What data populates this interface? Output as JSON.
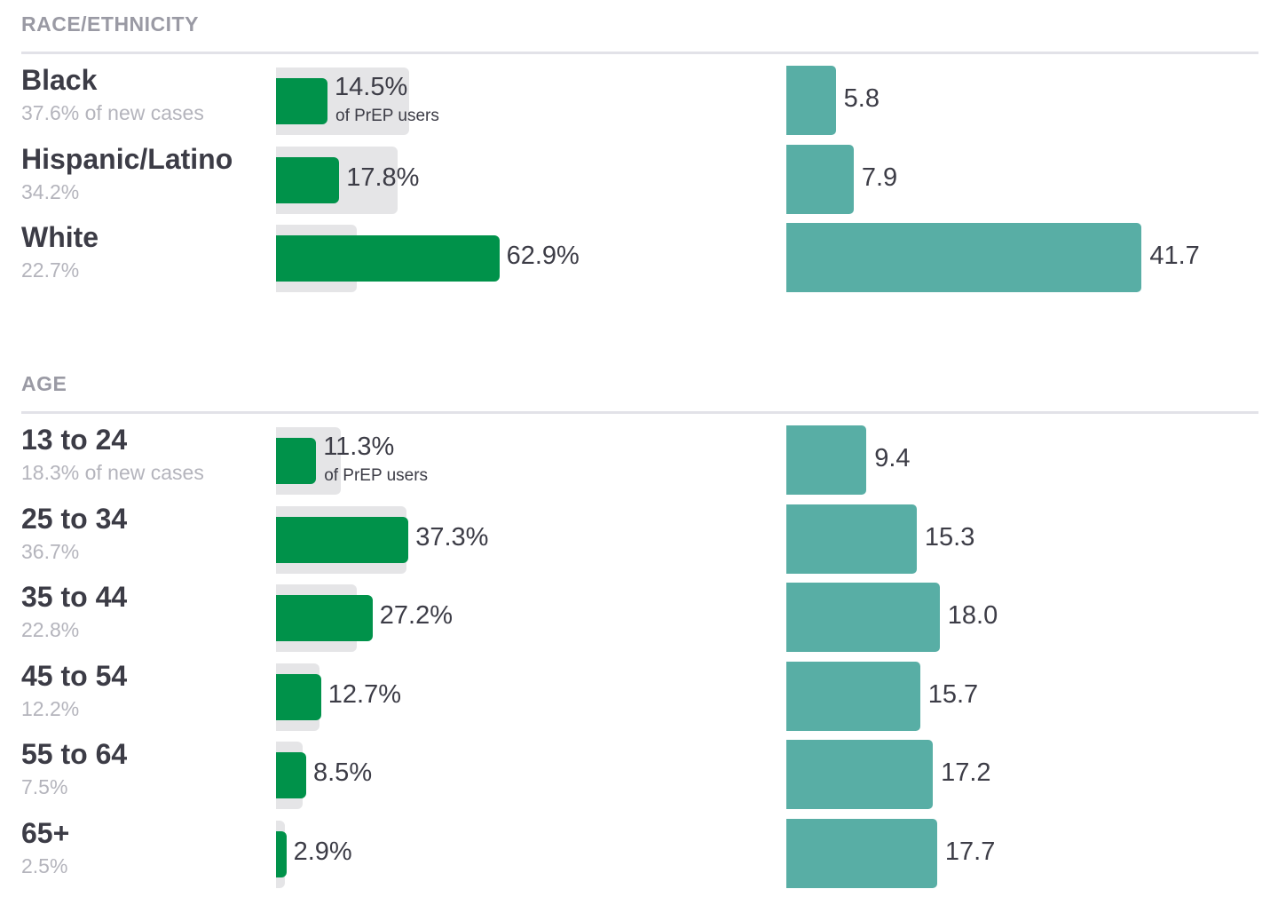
{
  "chart_data": [
    {
      "type": "bar",
      "title": "RACE/ETHNICITY",
      "categories": [
        "Black",
        "Hispanic/Latino",
        "White"
      ],
      "subtitles": [
        "37.6% of new cases",
        "34.2%",
        "22.7%"
      ],
      "new_cases_pct": [
        37.6,
        34.2,
        22.7
      ],
      "series": [
        {
          "values": [
            14.5,
            17.8,
            62.9
          ],
          "labels": [
            "14.5%",
            "17.8%",
            "62.9%"
          ],
          "note": "of PrEP users",
          "color": "#00924a"
        },
        {
          "values": [
            5.8,
            7.9,
            41.7
          ],
          "labels": [
            "5.8",
            "7.9",
            "41.7"
          ],
          "color": "#58aea5"
        }
      ]
    },
    {
      "type": "bar",
      "title": "AGE",
      "categories": [
        "13 to 24",
        "25 to 34",
        "35 to 44",
        "45 to 54",
        "55 to 64",
        "65+"
      ],
      "subtitles": [
        "18.3% of new cases",
        "36.7%",
        "22.8%",
        "12.2%",
        "7.5%",
        "2.5%"
      ],
      "new_cases_pct": [
        18.3,
        36.7,
        22.8,
        12.2,
        7.5,
        2.5
      ],
      "series": [
        {
          "values": [
            11.3,
            37.3,
            27.2,
            12.7,
            8.5,
            2.9
          ],
          "labels": [
            "11.3%",
            "37.3%",
            "27.2%",
            "12.7%",
            "8.5%",
            "2.9%"
          ],
          "note": "of PrEP users",
          "color": "#00924a"
        },
        {
          "values": [
            9.4,
            15.3,
            18.0,
            15.7,
            17.2,
            17.7
          ],
          "labels": [
            "9.4",
            "15.3",
            "18.0",
            "15.7",
            "17.2",
            "17.7"
          ],
          "color": "#58aea5"
        }
      ]
    }
  ]
}
